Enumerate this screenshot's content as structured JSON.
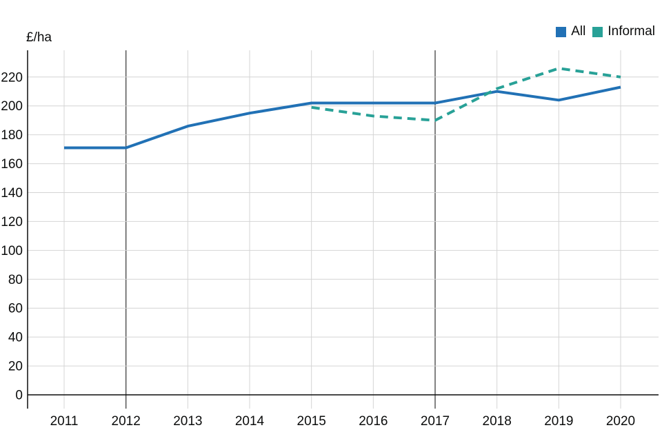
{
  "chart_data": {
    "type": "line",
    "title": "",
    "xlabel": "",
    "ylabel": "£/ha",
    "x": [
      2011,
      2012,
      2013,
      2014,
      2015,
      2016,
      2017,
      2018,
      2019,
      2020
    ],
    "series": [
      {
        "name": "All",
        "color": "#2171b5",
        "line_style": "solid",
        "values": [
          171,
          171,
          186,
          195,
          202,
          202,
          202,
          210,
          204,
          213
        ]
      },
      {
        "name": "Informal",
        "color": "#28a197",
        "line_style": "dashed",
        "values": [
          null,
          null,
          null,
          null,
          199,
          193,
          190,
          212,
          226,
          220
        ]
      }
    ],
    "ylim": [
      0,
      240
    ],
    "ytick_step": 20,
    "ytick_labels": [
      "0",
      "20",
      "40",
      "60",
      "80",
      "100",
      "120",
      "140",
      "160",
      "180",
      "200",
      "220"
    ],
    "grid": true,
    "dark_vertical_gridlines": [
      2012,
      2017
    ],
    "legend_position": "top-right"
  },
  "colors": {
    "all_series": "#2171b5",
    "informal_series": "#28a197",
    "gridline": "#d4d4d4",
    "dark_gridline": "#404040",
    "axis": "#0b0c0c",
    "text": "#0b0c0c",
    "background": "#ffffff"
  }
}
